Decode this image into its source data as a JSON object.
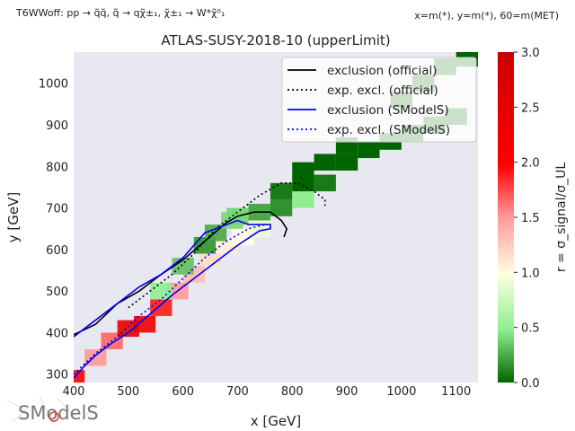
{
  "header": {
    "process": "T6WWoff: pp → q̃q̃, q̃ → qχ̃±₁, χ̃±₁ → W*χ̃⁰₁",
    "mass_info": "x=m(*), y=m(*), 60=m(MET)"
  },
  "logo_text": "SModelS",
  "chart_data": {
    "type": "heatmap",
    "title": "ATLAS-SUSY-2018-10 (upperLimit)",
    "xlabel": "x [GeV]",
    "ylabel": "y [GeV]",
    "xlim": [
      400,
      1140
    ],
    "ylim": [
      280,
      1075
    ],
    "xticks": [
      400,
      500,
      600,
      700,
      800,
      900,
      1000,
      1100
    ],
    "yticks": [
      300,
      400,
      500,
      600,
      700,
      800,
      900,
      1000
    ],
    "colorbar": {
      "label": "r = σ_signal/σ_UL",
      "min": 0.0,
      "max": 3.0,
      "ticks": [
        0.0,
        0.5,
        1.0,
        1.5,
        2.0,
        2.5,
        3.0
      ],
      "tick_labels": [
        "0.0",
        "0.5",
        "1.0",
        "1.5",
        "2.0",
        "2.5",
        "3.0"
      ],
      "colors": [
        "#006400",
        "#90ee90",
        "#ffffe0",
        "#ff9999",
        "#ff0000",
        "#cc0000"
      ]
    },
    "band": {
      "note": "dense fine-grained cells along diagonal (approx.)",
      "points": [
        [
          400,
          290,
          2.4
        ],
        [
          440,
          340,
          1.8
        ],
        [
          470,
          380,
          2.0
        ],
        [
          500,
          410,
          2.7
        ],
        [
          530,
          420,
          2.6
        ],
        [
          560,
          460,
          2.3
        ],
        [
          590,
          500,
          1.8
        ],
        [
          620,
          540,
          1.6
        ],
        [
          650,
          580,
          1.4
        ],
        [
          680,
          610,
          1.3
        ],
        [
          710,
          630,
          1.2
        ],
        [
          740,
          650,
          1.1
        ],
        [
          560,
          500,
          0.6
        ],
        [
          600,
          560,
          0.4
        ],
        [
          640,
          610,
          0.2
        ],
        [
          660,
          640,
          0.3
        ],
        [
          690,
          670,
          0.5
        ]
      ]
    },
    "cells": [
      {
        "x": 700,
        "y": 680,
        "r": 0.5
      },
      {
        "x": 740,
        "y": 690,
        "r": 0.3
      },
      {
        "x": 780,
        "y": 700,
        "r": 0.2
      },
      {
        "x": 820,
        "y": 720,
        "r": 0.6
      },
      {
        "x": 780,
        "y": 740,
        "r": 0.1
      },
      {
        "x": 820,
        "y": 760,
        "r": 0.0
      },
      {
        "x": 820,
        "y": 790,
        "r": 0.0
      },
      {
        "x": 860,
        "y": 760,
        "r": 0.1
      },
      {
        "x": 860,
        "y": 810,
        "r": 0.0
      },
      {
        "x": 900,
        "y": 810,
        "r": 0.0
      },
      {
        "x": 900,
        "y": 850,
        "r": 0.0
      },
      {
        "x": 940,
        "y": 840,
        "r": 0.0
      },
      {
        "x": 980,
        "y": 860,
        "r": 0.0
      },
      {
        "x": 1020,
        "y": 880,
        "r": 0.0
      },
      {
        "x": 1060,
        "y": 900,
        "r": 0.0
      },
      {
        "x": 1100,
        "y": 920,
        "r": 0.0
      },
      {
        "x": 1000,
        "y": 960,
        "r": 0.0
      },
      {
        "x": 1040,
        "y": 1000,
        "r": 0.0
      },
      {
        "x": 1080,
        "y": 1040,
        "r": 0.0
      },
      {
        "x": 1120,
        "y": 1060,
        "r": 0.0
      }
    ],
    "legend": {
      "position": "top-right",
      "entries": [
        {
          "label": "exclusion (official)",
          "color": "#000000",
          "style": "solid"
        },
        {
          "label": "exp. excl. (official)",
          "color": "#000000",
          "style": "dotted"
        },
        {
          "label": "exclusion (SModelS)",
          "color": "#0000ee",
          "style": "solid"
        },
        {
          "label": "exp. excl. (SModelS)",
          "color": "#0000ee",
          "style": "dotted"
        }
      ]
    },
    "curves": {
      "exclusion_official": [
        [
          400,
          395
        ],
        [
          440,
          420
        ],
        [
          480,
          470
        ],
        [
          520,
          500
        ],
        [
          560,
          540
        ],
        [
          600,
          575
        ],
        [
          640,
          620
        ],
        [
          680,
          665
        ],
        [
          700,
          680
        ],
        [
          730,
          690
        ],
        [
          760,
          690
        ],
        [
          780,
          670
        ],
        [
          790,
          650
        ],
        [
          785,
          630
        ]
      ],
      "exp_excl_official": [
        [
          500,
          460
        ],
        [
          540,
          500
        ],
        [
          580,
          540
        ],
        [
          620,
          590
        ],
        [
          660,
          650
        ],
        [
          700,
          690
        ],
        [
          740,
          730
        ],
        [
          780,
          760
        ],
        [
          810,
          760
        ],
        [
          840,
          740
        ],
        [
          860,
          720
        ],
        [
          860,
          705
        ]
      ],
      "exclusion_smodels": [
        [
          400,
          290
        ],
        [
          420,
          320
        ],
        [
          440,
          345
        ],
        [
          470,
          375
        ],
        [
          500,
          400
        ],
        [
          540,
          445
        ],
        [
          580,
          490
        ],
        [
          620,
          530
        ],
        [
          660,
          570
        ],
        [
          700,
          610
        ],
        [
          740,
          645
        ],
        [
          760,
          650
        ],
        [
          760,
          660
        ],
        [
          720,
          660
        ],
        [
          700,
          670
        ],
        [
          660,
          650
        ],
        [
          640,
          640
        ],
        [
          600,
          580
        ],
        [
          560,
          540
        ],
        [
          520,
          510
        ],
        [
          480,
          470
        ],
        [
          440,
          430
        ],
        [
          400,
          390
        ]
      ],
      "exp_excl_smodels": [
        [
          400,
          300
        ],
        [
          440,
          350
        ],
        [
          480,
          390
        ],
        [
          520,
          440
        ],
        [
          560,
          480
        ],
        [
          600,
          530
        ],
        [
          640,
          580
        ],
        [
          680,
          620
        ],
        [
          720,
          650
        ],
        [
          750,
          660
        ]
      ]
    }
  }
}
